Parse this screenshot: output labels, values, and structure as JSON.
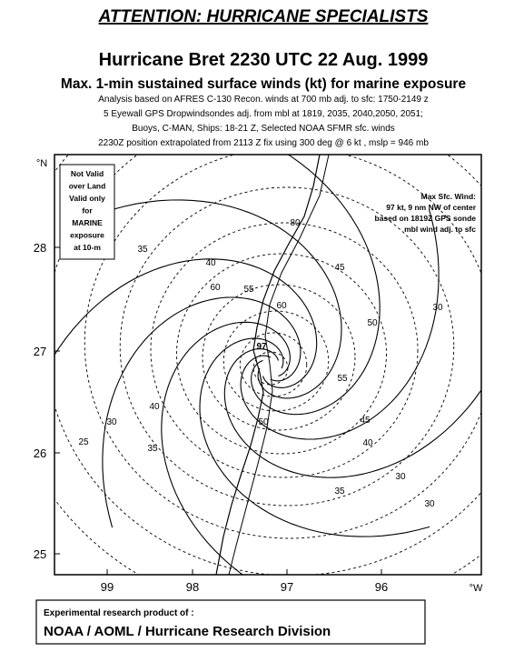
{
  "header": {
    "banner": "ATTENTION: HURRICANE SPECIALISTS",
    "title": "Hurricane Bret 2230 UTC 22 Aug. 1999",
    "subtitle": "Max. 1-min sustained surface winds (kt) for marine exposure",
    "notes": [
      "Analysis based on AFRES C-130  Recon. winds at 700 mb adj. to sfc: 1750-2149 z",
      "5 Eyewall GPS Dropwindsondes adj. from mbl at 1819, 2035, 2040,2050, 2051;",
      "Buoys, C-MAN, Ships: 18-21 Z, Selected NOAA SFMR sfc. winds",
      "2230Z  position extrapolated from 2113 Z fix  using 300 deg @ 6 kt , mslp = 946 mb"
    ]
  },
  "map": {
    "lat_unit": "°N",
    "lon_unit": "°W",
    "lat_ticks": [
      28,
      27,
      26,
      25
    ],
    "lon_ticks": [
      99,
      98,
      97,
      96
    ],
    "land_note": [
      "Not Valid",
      "over Land",
      "Valid only",
      "for",
      "MARINE",
      "exposure",
      "at 10-m"
    ],
    "max_wind_note": [
      "Max Sfc. Wind:",
      "97 kt, 9 nm NW of center",
      "based on 1819Z GPS sonde",
      "mbl wind adj. to sfc"
    ],
    "isotach_labels": [
      "97",
      "80",
      "40",
      "60",
      "55",
      "60",
      "45",
      "50",
      "30",
      "35",
      "40",
      "30",
      "25",
      "35",
      "55",
      "45",
      "40",
      "35",
      "30",
      "50",
      "30"
    ]
  },
  "footer": {
    "line1": "Experimental research product of :",
    "line2": "NOAA / AOML / Hurricane Research Division"
  }
}
